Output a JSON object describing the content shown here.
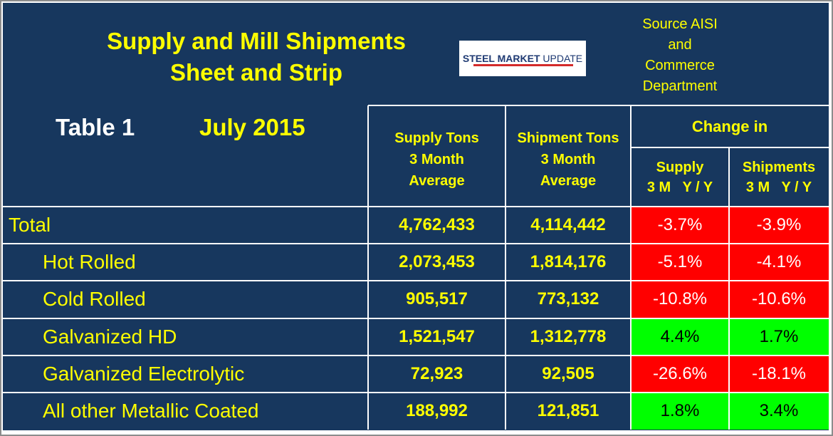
{
  "header": {
    "title": [
      "Supply and Mill Shipments",
      "Sheet and Strip"
    ],
    "logo": [
      "STEEL MARKET",
      "UPDATE"
    ],
    "source": [
      "Source AISI",
      "and",
      "Commerce",
      "Department"
    ],
    "table_label": "Table 1",
    "date": "July 2015"
  },
  "table": {
    "columns": [
      [
        "Supply Tons",
        "3 Month",
        "Average"
      ],
      [
        "Shipment Tons",
        "3 Month",
        "Average"
      ]
    ],
    "change_header": "Change in",
    "change_columns": [
      [
        "Supply",
        "3 M   Y / Y"
      ],
      [
        "Shipments",
        "3 M   Y / Y"
      ]
    ],
    "rows": [
      [
        "Total",
        "4,762,433",
        "4,114,442",
        "-3.7%",
        "-3.9%"
      ],
      [
        "Hot Rolled",
        "2,073,453",
        "1,814,176",
        "-5.1%",
        "-4.1%"
      ],
      [
        "Cold Rolled",
        "905,517",
        "773,132",
        "-10.8%",
        "-10.6%"
      ],
      [
        "Galvanized HD",
        "1,521,547",
        "1,312,778",
        "4.4%",
        "1.7%"
      ],
      [
        "Galvanized Electrolytic",
        "72,923",
        "92,505",
        "-26.6%",
        "-18.1%"
      ],
      [
        "All other Metallic Coated",
        "188,992",
        "121,851",
        "1.8%",
        "3.4%"
      ]
    ]
  }
}
